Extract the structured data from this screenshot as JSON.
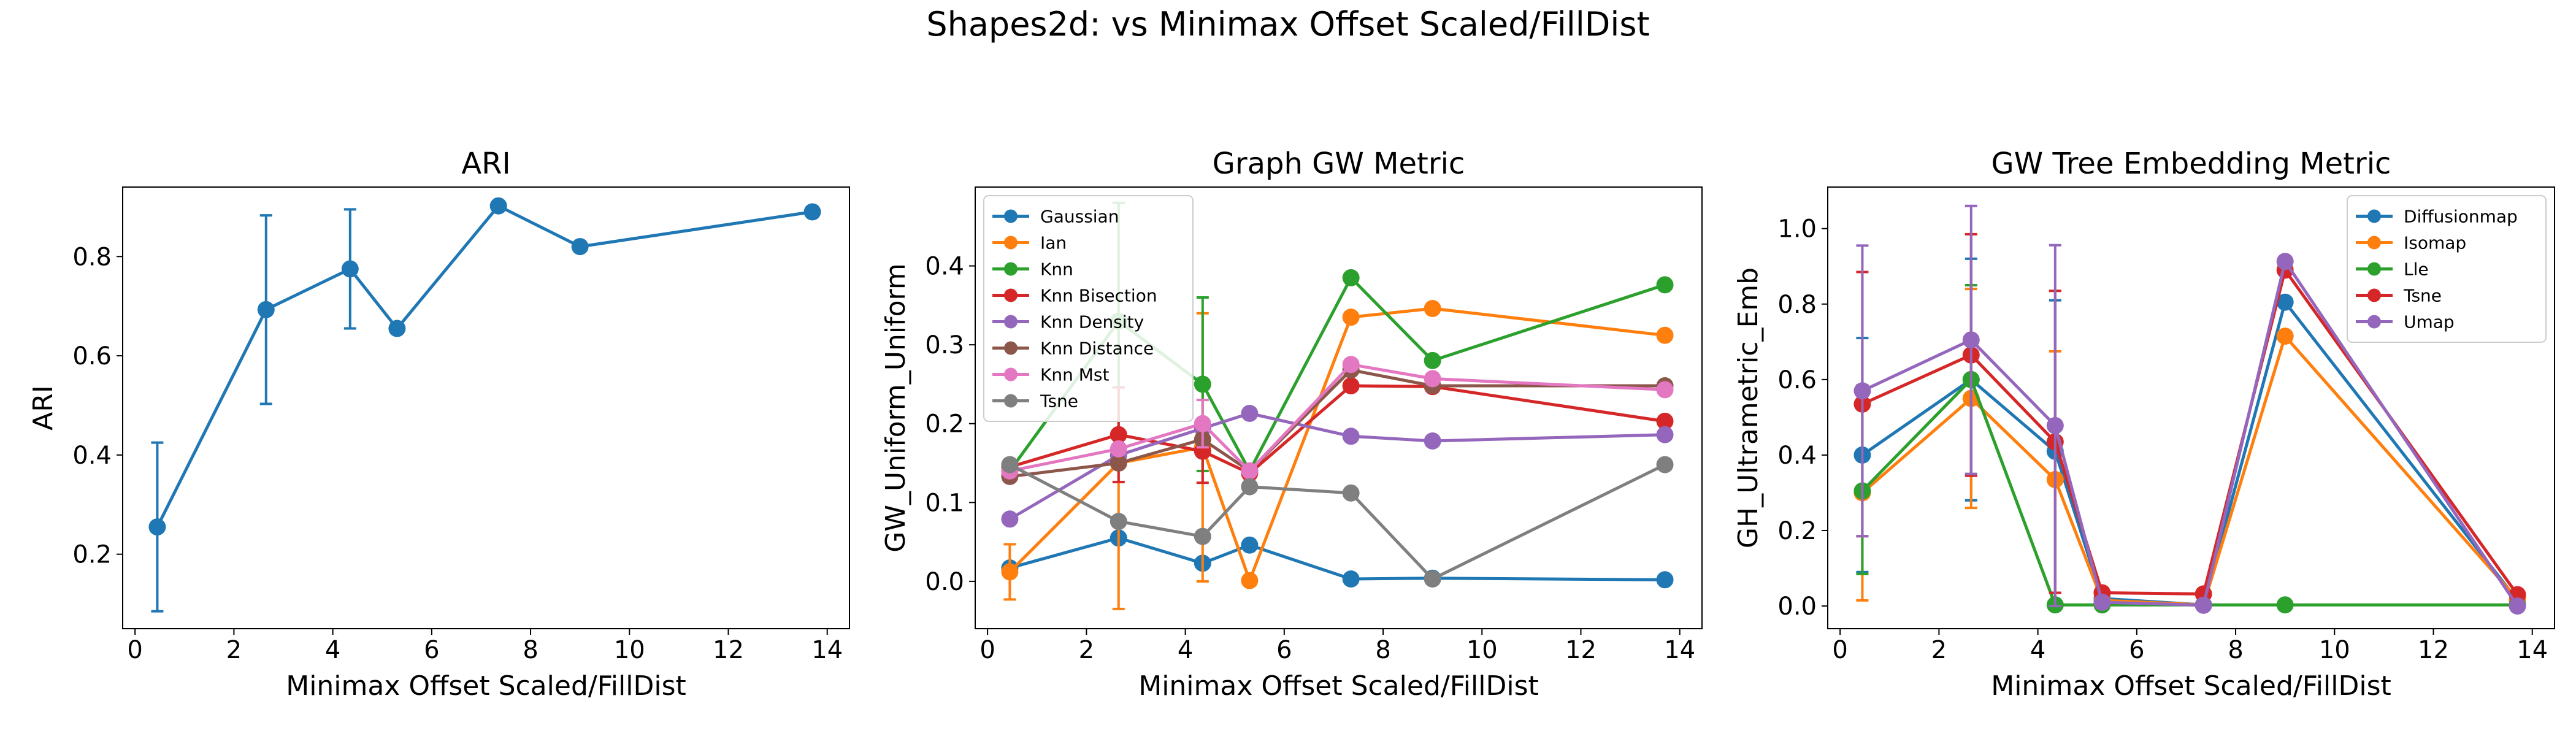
{
  "figure": {
    "title": "Shapes2d: vs Minimax Offset Scaled/FillDist"
  },
  "chart_data": [
    {
      "type": "line",
      "title": "ARI",
      "xlabel": "Minimax Offset Scaled/FillDist",
      "ylabel": "ARI",
      "xlim": [
        -0.25,
        14.45
      ],
      "ylim": [
        0.05,
        0.94
      ],
      "xticks": [
        0,
        2,
        4,
        6,
        8,
        10,
        12,
        14
      ],
      "yticks": [
        0.2,
        0.4,
        0.6,
        0.8
      ],
      "x": [
        0.45,
        2.65,
        4.35,
        5.3,
        7.35,
        9.0,
        13.7
      ],
      "legend": null,
      "series": [
        {
          "color": "#1f77b4",
          "values": [
            0.255,
            0.693,
            0.775,
            0.655,
            0.902,
            0.82,
            0.89
          ],
          "err_low": [
            0.17,
            0.19,
            0.12,
            0,
            0,
            0,
            0
          ],
          "err_high": [
            0.17,
            0.19,
            0.12,
            0,
            0,
            0,
            0
          ]
        }
      ]
    },
    {
      "type": "line",
      "title": "Graph GW Metric",
      "xlabel": "Minimax Offset Scaled/FillDist",
      "ylabel": "GW_Uniform_Uniform",
      "xlim": [
        -0.25,
        14.45
      ],
      "ylim": [
        -0.06,
        0.5
      ],
      "xticks": [
        0,
        2,
        4,
        6,
        8,
        10,
        12,
        14
      ],
      "yticks": [
        0.0,
        0.1,
        0.2,
        0.3,
        0.4
      ],
      "x": [
        0.45,
        2.65,
        4.35,
        5.3,
        7.35,
        9.0,
        13.7
      ],
      "legend": "upper-left",
      "series": [
        {
          "name": "Gaussian",
          "color": "#1f77b4",
          "values": [
            0.017,
            0.055,
            0.023,
            0.046,
            0.003,
            0.004,
            0.002
          ],
          "err_low": [
            0,
            0,
            0,
            0,
            0,
            0,
            0
          ],
          "err_high": [
            0,
            0,
            0,
            0,
            0,
            0,
            0
          ]
        },
        {
          "name": "Ian",
          "color": "#ff7f0e",
          "values": [
            0.012,
            0.15,
            0.17,
            0.001,
            0.335,
            0.346,
            0.312
          ],
          "err_low": [
            0.035,
            0.185,
            0.17,
            0,
            0,
            0,
            0
          ],
          "err_high": [
            0.035,
            0.185,
            0.17,
            0,
            0,
            0,
            0
          ]
        },
        {
          "name": "Knn",
          "color": "#2ca02c",
          "values": [
            0.14,
            0.33,
            0.25,
            0.14,
            0.385,
            0.28,
            0.376
          ],
          "err_low": [
            0,
            0.15,
            0.11,
            0,
            0,
            0,
            0
          ],
          "err_high": [
            0,
            0.15,
            0.11,
            0,
            0,
            0,
            0
          ]
        },
        {
          "name": "Knn Bisection",
          "color": "#d62728",
          "values": [
            0.145,
            0.186,
            0.165,
            0.137,
            0.248,
            0.247,
            0.203
          ],
          "err_low": [
            0,
            0.06,
            0.04,
            0,
            0,
            0,
            0
          ],
          "err_high": [
            0,
            0.06,
            0.04,
            0,
            0,
            0,
            0
          ]
        },
        {
          "name": "Knn Density",
          "color": "#9467bd",
          "values": [
            0.079,
            0.16,
            0.194,
            0.213,
            0.184,
            0.178,
            0.186
          ],
          "err_low": [
            0,
            0,
            0,
            0,
            0,
            0,
            0
          ],
          "err_high": [
            0,
            0,
            0,
            0,
            0,
            0,
            0
          ]
        },
        {
          "name": "Knn Distance",
          "color": "#8c564b",
          "values": [
            0.133,
            0.15,
            0.18,
            0.14,
            0.268,
            0.248,
            0.248
          ],
          "err_low": [
            0,
            0,
            0,
            0,
            0,
            0,
            0
          ],
          "err_high": [
            0,
            0,
            0,
            0,
            0,
            0,
            0
          ]
        },
        {
          "name": "Knn Mst",
          "color": "#e377c2",
          "values": [
            0.14,
            0.168,
            0.2,
            0.14,
            0.275,
            0.257,
            0.243
          ],
          "err_low": [
            0,
            0,
            0.03,
            0,
            0,
            0,
            0
          ],
          "err_high": [
            0,
            0,
            0.03,
            0,
            0,
            0,
            0
          ]
        },
        {
          "name": "Tsne",
          "color": "#7f7f7f",
          "values": [
            0.148,
            0.076,
            0.057,
            0.12,
            0.112,
            0.003,
            0.148
          ],
          "err_low": [
            0,
            0,
            0,
            0,
            0,
            0,
            0
          ],
          "err_high": [
            0,
            0,
            0,
            0,
            0,
            0,
            0
          ]
        }
      ]
    },
    {
      "type": "line",
      "title": "GW Tree Embedding Metric",
      "xlabel": "Minimax Offset Scaled/FillDist",
      "ylabel": "GH_Ultrametric_Emb",
      "xlim": [
        -0.25,
        14.45
      ],
      "ylim": [
        -0.06,
        1.11
      ],
      "xticks": [
        0,
        2,
        4,
        6,
        8,
        10,
        12,
        14
      ],
      "yticks": [
        0.0,
        0.2,
        0.4,
        0.6,
        0.8,
        1.0
      ],
      "x": [
        0.45,
        2.65,
        4.35,
        5.3,
        7.35,
        9.0,
        13.7
      ],
      "legend": "upper-right",
      "series": [
        {
          "name": "Diffusionmap",
          "color": "#1f77b4",
          "values": [
            0.4,
            0.6,
            0.41,
            0.02,
            0.003,
            0.805,
            0.015
          ],
          "err_low": [
            0.31,
            0.32,
            0.4,
            0,
            0,
            0,
            0
          ],
          "err_high": [
            0.31,
            0.32,
            0.4,
            0,
            0,
            0,
            0
          ]
        },
        {
          "name": "Isomap",
          "color": "#ff7f0e",
          "values": [
            0.3,
            0.55,
            0.335,
            0.015,
            0.003,
            0.715,
            0.018
          ],
          "err_low": [
            0.285,
            0.29,
            0.34,
            0,
            0,
            0,
            0
          ],
          "err_high": [
            0.285,
            0.29,
            0.34,
            0,
            0,
            0,
            0
          ]
        },
        {
          "name": "Lle",
          "color": "#2ca02c",
          "values": [
            0.305,
            0.6,
            0.003,
            0.003,
            0.003,
            0.003,
            0.003
          ],
          "err_low": [
            0.22,
            0.25,
            0,
            0,
            0,
            0,
            0
          ],
          "err_high": [
            0.22,
            0.25,
            0,
            0,
            0,
            0,
            0
          ]
        },
        {
          "name": "Tsne",
          "color": "#d62728",
          "values": [
            0.535,
            0.665,
            0.435,
            0.035,
            0.032,
            0.89,
            0.03
          ],
          "err_low": [
            0.35,
            0.32,
            0.4,
            0,
            0,
            0,
            0
          ],
          "err_high": [
            0.35,
            0.32,
            0.4,
            0,
            0,
            0,
            0
          ]
        },
        {
          "name": "Umap",
          "color": "#9467bd",
          "values": [
            0.57,
            0.705,
            0.478,
            0.01,
            0.002,
            0.913,
            0.0
          ],
          "err_low": [
            0.385,
            0.355,
            0.478,
            0,
            0,
            0,
            0
          ],
          "err_high": [
            0.385,
            0.355,
            0.478,
            0,
            0,
            0,
            0
          ]
        }
      ]
    }
  ]
}
